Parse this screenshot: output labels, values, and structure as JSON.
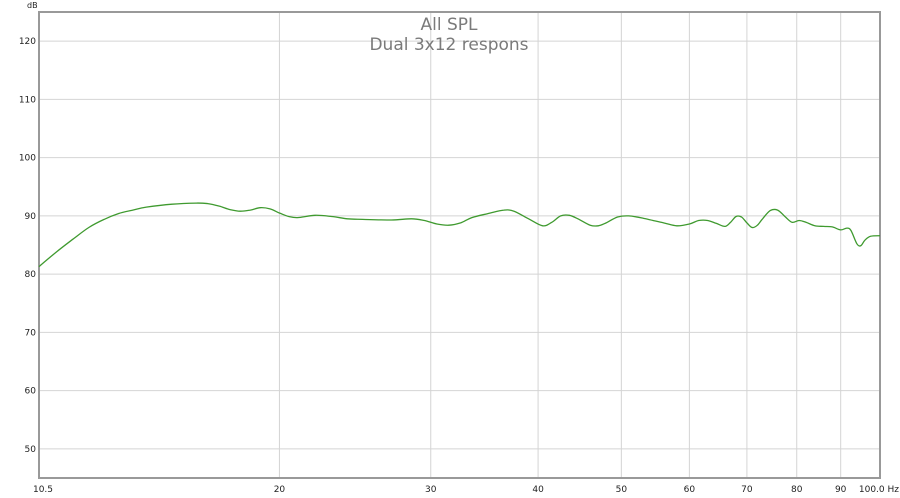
{
  "chart_data": {
    "type": "line",
    "title": "All SPL",
    "subtitle": "Dual 3x12 respons",
    "ylabel": "dB",
    "xlabel": "Hz",
    "x_scale": "log",
    "xlim": [
      10.5,
      100
    ],
    "ylim": [
      45,
      125
    ],
    "grid": true,
    "x_ticks": [
      {
        "value": 10.5,
        "label": "10.5"
      },
      {
        "value": 20,
        "label": "20"
      },
      {
        "value": 30,
        "label": "30"
      },
      {
        "value": 40,
        "label": "40"
      },
      {
        "value": 50,
        "label": "50"
      },
      {
        "value": 60,
        "label": "60"
      },
      {
        "value": 70,
        "label": "70"
      },
      {
        "value": 80,
        "label": "80"
      },
      {
        "value": 90,
        "label": "90"
      },
      {
        "value": 100,
        "label": "100.0 Hz"
      }
    ],
    "y_ticks": [
      {
        "value": 50,
        "label": "50"
      },
      {
        "value": 60,
        "label": "60"
      },
      {
        "value": 70,
        "label": "70"
      },
      {
        "value": 80,
        "label": "80"
      },
      {
        "value": 90,
        "label": "90"
      },
      {
        "value": 100,
        "label": "100"
      },
      {
        "value": 110,
        "label": "110"
      },
      {
        "value": 120,
        "label": "120"
      }
    ],
    "series": [
      {
        "color": "#3f9a2f",
        "points": [
          [
            10.5,
            81.3
          ],
          [
            11.0,
            83.8
          ],
          [
            11.5,
            86.0
          ],
          [
            12.0,
            88.0
          ],
          [
            12.5,
            89.4
          ],
          [
            13.0,
            90.4
          ],
          [
            13.5,
            91.0
          ],
          [
            14.0,
            91.5
          ],
          [
            15.0,
            92.0
          ],
          [
            16.0,
            92.2
          ],
          [
            16.5,
            92.1
          ],
          [
            17.0,
            91.7
          ],
          [
            17.5,
            91.1
          ],
          [
            18.0,
            90.8
          ],
          [
            18.5,
            91.0
          ],
          [
            19.0,
            91.4
          ],
          [
            19.5,
            91.2
          ],
          [
            20.0,
            90.5
          ],
          [
            20.5,
            89.9
          ],
          [
            21.0,
            89.7
          ],
          [
            22.0,
            90.1
          ],
          [
            23.0,
            89.9
          ],
          [
            24.0,
            89.5
          ],
          [
            25.0,
            89.4
          ],
          [
            27.0,
            89.3
          ],
          [
            28.5,
            89.5
          ],
          [
            29.5,
            89.2
          ],
          [
            30.5,
            88.6
          ],
          [
            31.5,
            88.4
          ],
          [
            32.5,
            88.8
          ],
          [
            33.5,
            89.7
          ],
          [
            35.0,
            90.4
          ],
          [
            36.5,
            91.0
          ],
          [
            37.5,
            90.8
          ],
          [
            39.0,
            89.5
          ],
          [
            40.5,
            88.3
          ],
          [
            41.5,
            88.9
          ],
          [
            42.5,
            90.0
          ],
          [
            43.5,
            90.1
          ],
          [
            44.5,
            89.5
          ],
          [
            46.0,
            88.4
          ],
          [
            47.0,
            88.3
          ],
          [
            48.0,
            88.8
          ],
          [
            49.5,
            89.8
          ],
          [
            51.0,
            90.0
          ],
          [
            53.0,
            89.6
          ],
          [
            56.0,
            88.8
          ],
          [
            58.0,
            88.3
          ],
          [
            60.0,
            88.6
          ],
          [
            61.5,
            89.2
          ],
          [
            63.0,
            89.2
          ],
          [
            64.5,
            88.7
          ],
          [
            66.0,
            88.2
          ],
          [
            67.0,
            88.9
          ],
          [
            68.0,
            89.9
          ],
          [
            69.0,
            89.8
          ],
          [
            70.0,
            88.8
          ],
          [
            71.0,
            88.0
          ],
          [
            72.0,
            88.4
          ],
          [
            73.0,
            89.5
          ],
          [
            74.5,
            90.9
          ],
          [
            76.0,
            91.0
          ],
          [
            77.5,
            89.9
          ],
          [
            79.0,
            88.9
          ],
          [
            80.5,
            89.2
          ],
          [
            82.0,
            88.9
          ],
          [
            84.0,
            88.3
          ],
          [
            86.0,
            88.2
          ],
          [
            88.0,
            88.1
          ],
          [
            90.0,
            87.6
          ],
          [
            91.5,
            87.9
          ],
          [
            92.5,
            87.5
          ],
          [
            94.0,
            85.2
          ],
          [
            95.0,
            84.9
          ],
          [
            96.0,
            85.8
          ],
          [
            97.5,
            86.5
          ],
          [
            100.0,
            86.6
          ]
        ]
      }
    ]
  }
}
